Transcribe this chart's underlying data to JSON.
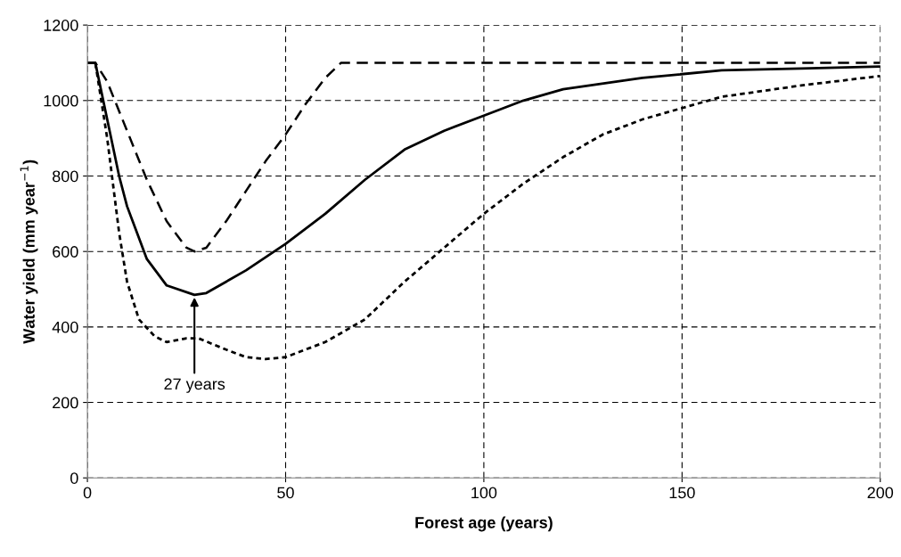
{
  "chart_data": {
    "type": "line",
    "xlabel": "Forest age (years)",
    "ylabel": "Water yield (mm year$^{−1}$)",
    "xlim": [
      0,
      200
    ],
    "ylim": [
      0,
      1200
    ],
    "xticks": [
      0,
      50,
      100,
      150,
      200
    ],
    "yticks": [
      0,
      200,
      400,
      600,
      800,
      1000,
      1200
    ],
    "grid": true,
    "legend": false,
    "marker": "none",
    "series": [
      {
        "color": "#000000",
        "line_style": "dashed",
        "x": [
          0,
          2,
          5,
          10,
          15,
          20,
          25,
          27,
          30,
          35,
          40,
          45,
          50,
          55,
          60,
          64,
          100,
          150,
          200
        ],
        "values": [
          1100,
          1100,
          1050,
          920,
          790,
          680,
          610,
          600,
          610,
          680,
          760,
          840,
          910,
          990,
          1060,
          1100,
          1100,
          1100,
          1100
        ]
      },
      {
        "color": "#000000",
        "line_style": "solid",
        "x": [
          0,
          2,
          5,
          8,
          10,
          15,
          20,
          27,
          30,
          40,
          50,
          60,
          70,
          80,
          90,
          100,
          110,
          120,
          140,
          160,
          180,
          200
        ],
        "values": [
          1100,
          1100,
          950,
          800,
          720,
          580,
          510,
          485,
          490,
          550,
          620,
          700,
          790,
          870,
          920,
          960,
          1000,
          1030,
          1060,
          1080,
          1085,
          1090
        ]
      },
      {
        "color": "#000000",
        "line_style": "dotted",
        "x": [
          0,
          2,
          5,
          8,
          10,
          13,
          17,
          20,
          25,
          28,
          35,
          40,
          45,
          50,
          60,
          70,
          80,
          90,
          100,
          110,
          120,
          130,
          140,
          150,
          160,
          180,
          200
        ],
        "values": [
          1100,
          1100,
          900,
          650,
          520,
          420,
          375,
          360,
          370,
          370,
          340,
          320,
          315,
          320,
          360,
          420,
          520,
          610,
          700,
          780,
          850,
          910,
          950,
          980,
          1010,
          1040,
          1065
        ]
      }
    ],
    "annotations": [
      {
        "text": "27 years",
        "x": 27,
        "y": 485
      }
    ]
  }
}
